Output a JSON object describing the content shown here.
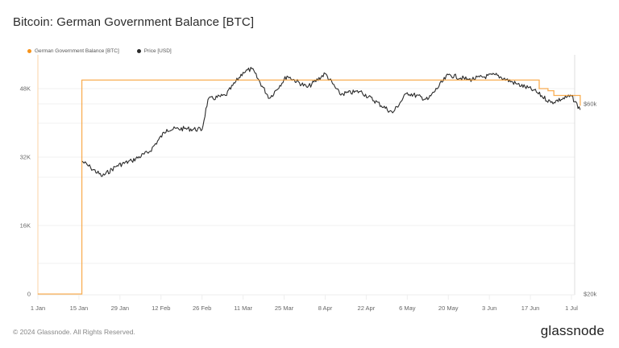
{
  "title": "Bitcoin: German Government Balance [BTC]",
  "legend": [
    {
      "label": "German Government Balance [BTC]",
      "color": "#f7931a"
    },
    {
      "label": "Price [USD]",
      "color": "#2b2b2b"
    }
  ],
  "footer": {
    "copyright": "© 2024 Glassnode. All Rights Reserved.",
    "brand": "glassnode"
  },
  "chart_data": {
    "type": "line",
    "title": "Bitcoin: German Government Balance [BTC]",
    "xlabel": "",
    "ylabel_left": "German Government Balance [BTC]",
    "ylabel_right": "Price [USD]",
    "x_ticks": [
      "1 Jan",
      "15 Jan",
      "29 Jan",
      "12 Feb",
      "26 Feb",
      "11 Mar",
      "25 Mar",
      "8 Apr",
      "22 Apr",
      "6 May",
      "20 May",
      "3 Jun",
      "17 Jun",
      "1 Jul"
    ],
    "y_left_ticks": [
      "0",
      "16K",
      "32K",
      "48K"
    ],
    "y_left_range": [
      0,
      56000
    ],
    "y_right_ticks": [
      "$20k",
      "$60k"
    ],
    "y_right_scale": "log",
    "grid": true,
    "legend_position": "top-left",
    "series": [
      {
        "name": "German Government Balance [BTC]",
        "axis": "left",
        "color": "#f7931a",
        "points": [
          {
            "date": "1 Jan",
            "value": 0
          },
          {
            "date": "15 Jan",
            "value": 0
          },
          {
            "date": "16 Jan",
            "value": 50000
          },
          {
            "date": "19 Jun",
            "value": 50000
          },
          {
            "date": "20 Jun",
            "value": 48000
          },
          {
            "date": "23 Jun",
            "value": 47500
          },
          {
            "date": "25 Jun",
            "value": 46400
          },
          {
            "date": "1 Jul",
            "value": 46400
          },
          {
            "date": "4 Jul",
            "value": 44000
          }
        ]
      },
      {
        "name": "Price [USD]",
        "axis": "right",
        "color": "#2b2b2b",
        "points": [
          {
            "date": "16 Jan",
            "value": 43100
          },
          {
            "date": "19 Jan",
            "value": 41500
          },
          {
            "date": "23 Jan",
            "value": 39500
          },
          {
            "date": "28 Jan",
            "value": 42000
          },
          {
            "date": "2 Feb",
            "value": 43200
          },
          {
            "date": "8 Feb",
            "value": 45500
          },
          {
            "date": "14 Feb",
            "value": 51800
          },
          {
            "date": "20 Feb",
            "value": 52000
          },
          {
            "date": "26 Feb",
            "value": 51700
          },
          {
            "date": "28 Feb",
            "value": 61500
          },
          {
            "date": "5 Mar",
            "value": 63000
          },
          {
            "date": "11 Mar",
            "value": 72000
          },
          {
            "date": "14 Mar",
            "value": 73500
          },
          {
            "date": "20 Mar",
            "value": 62000
          },
          {
            "date": "26 Mar",
            "value": 70500
          },
          {
            "date": "2 Apr",
            "value": 66000
          },
          {
            "date": "8 Apr",
            "value": 71500
          },
          {
            "date": "13 Apr",
            "value": 63500
          },
          {
            "date": "20 Apr",
            "value": 64500
          },
          {
            "date": "1 May",
            "value": 57000
          },
          {
            "date": "6 May",
            "value": 64000
          },
          {
            "date": "13 May",
            "value": 61500
          },
          {
            "date": "20 May",
            "value": 71000
          },
          {
            "date": "27 May",
            "value": 69000
          },
          {
            "date": "5 Jun",
            "value": 71000
          },
          {
            "date": "12 Jun",
            "value": 67500
          },
          {
            "date": "18 Jun",
            "value": 65000
          },
          {
            "date": "24 Jun",
            "value": 60500
          },
          {
            "date": "1 Jul",
            "value": 62800
          },
          {
            "date": "4 Jul",
            "value": 58000
          }
        ]
      }
    ]
  }
}
